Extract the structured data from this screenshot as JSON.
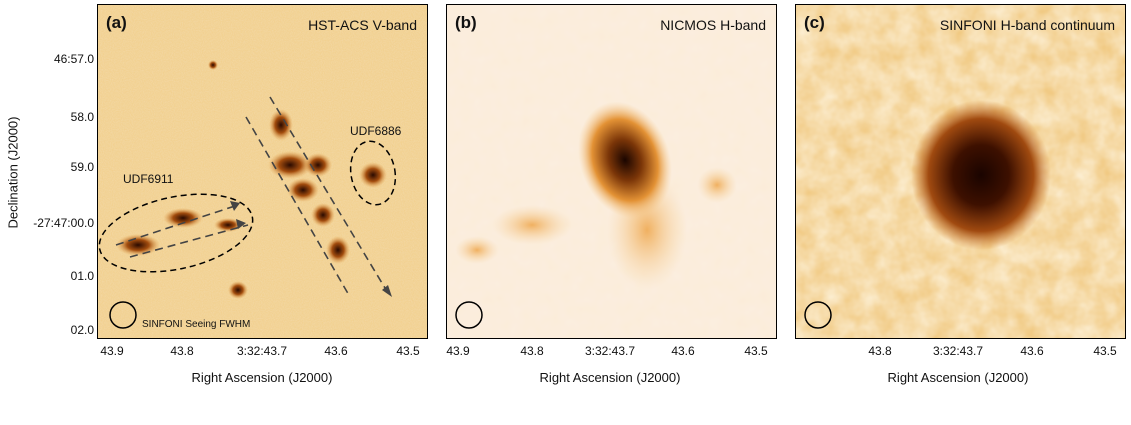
{
  "panels": [
    {
      "label": "(a)",
      "title": "HST-ACS V-band",
      "objects": [
        "UDF6911",
        "UDF6886"
      ],
      "seeing_label": "SINFONI Seeing FWHM"
    },
    {
      "label": "(b)",
      "title": "NICMOS H-band"
    },
    {
      "label": "(c)",
      "title": "SINFONI H-band continuum"
    }
  ],
  "y_axis": {
    "label": "Declination (J2000)",
    "ticks": [
      "46:57.0",
      "58.0",
      "59.0",
      "-27:47:00.0",
      "01.0",
      "02.0"
    ]
  },
  "x_axis": {
    "label": "Right Ascension (J2000)",
    "label_b": "Right Ascension (J2000)",
    "label_c": "Right Ascension (J2000)",
    "ticks_ab": [
      "43.9",
      "43.8",
      "3:32:43.7",
      "43.6",
      "43.5"
    ],
    "ticks_c": [
      "43.8",
      "3:32:43.7",
      "43.6",
      "43.5"
    ]
  },
  "colors": {
    "light": "#f6dcae",
    "mid": "#d88a2a",
    "dark": "#2a0a00"
  }
}
